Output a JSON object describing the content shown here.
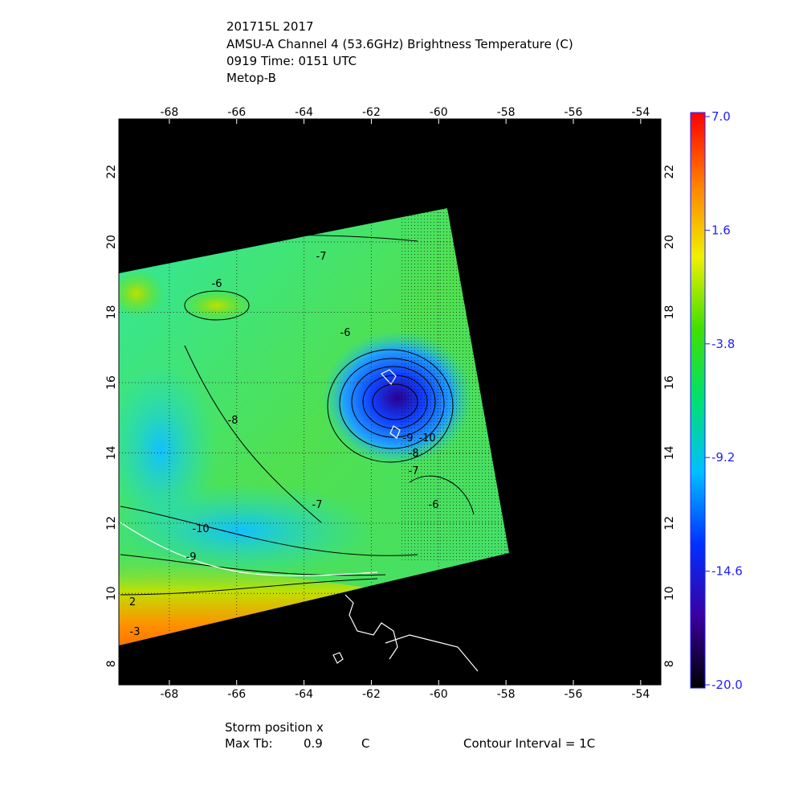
{
  "header": {
    "lines": [
      "201715L 2017",
      "AMSU-A Channel 4 (53.6GHz) Brightness Temperature (C)",
      "0919 Time: 0151 UTC",
      "Metop-B"
    ]
  },
  "map": {
    "xlim": [
      -69.5,
      -53.4
    ],
    "ylim": [
      7.4,
      23.5
    ],
    "xticks": [
      -68,
      -66,
      -64,
      -62,
      -60,
      -58,
      -56,
      -54
    ],
    "yticks": [
      8,
      10,
      12,
      14,
      16,
      18,
      20,
      22
    ],
    "grid": true,
    "contour_labels": [
      -6,
      -7,
      -6,
      -8,
      -7,
      -9,
      -10,
      -8,
      -7,
      -6,
      -10,
      -9,
      2,
      -3
    ]
  },
  "colorbar": {
    "clim": [
      -20,
      7
    ],
    "ticks": [
      {
        "value": 7,
        "label": "7.0"
      },
      1.6,
      -3.8,
      -9.2,
      -14.6,
      {
        "value": -20,
        "label": "-20.0"
      }
    ],
    "colors": [
      "#000000",
      "#3a00a0",
      "#0030ff",
      "#00c0ff",
      "#00e070",
      "#40e000",
      "#f0f000",
      "#ff8000",
      "#ff0000"
    ]
  },
  "footer": {
    "storm": "Storm position x",
    "max_label": "Max Tb:",
    "max_value": 0.9,
    "max_unit": "C",
    "interval": "Contour Interval = 1C"
  }
}
